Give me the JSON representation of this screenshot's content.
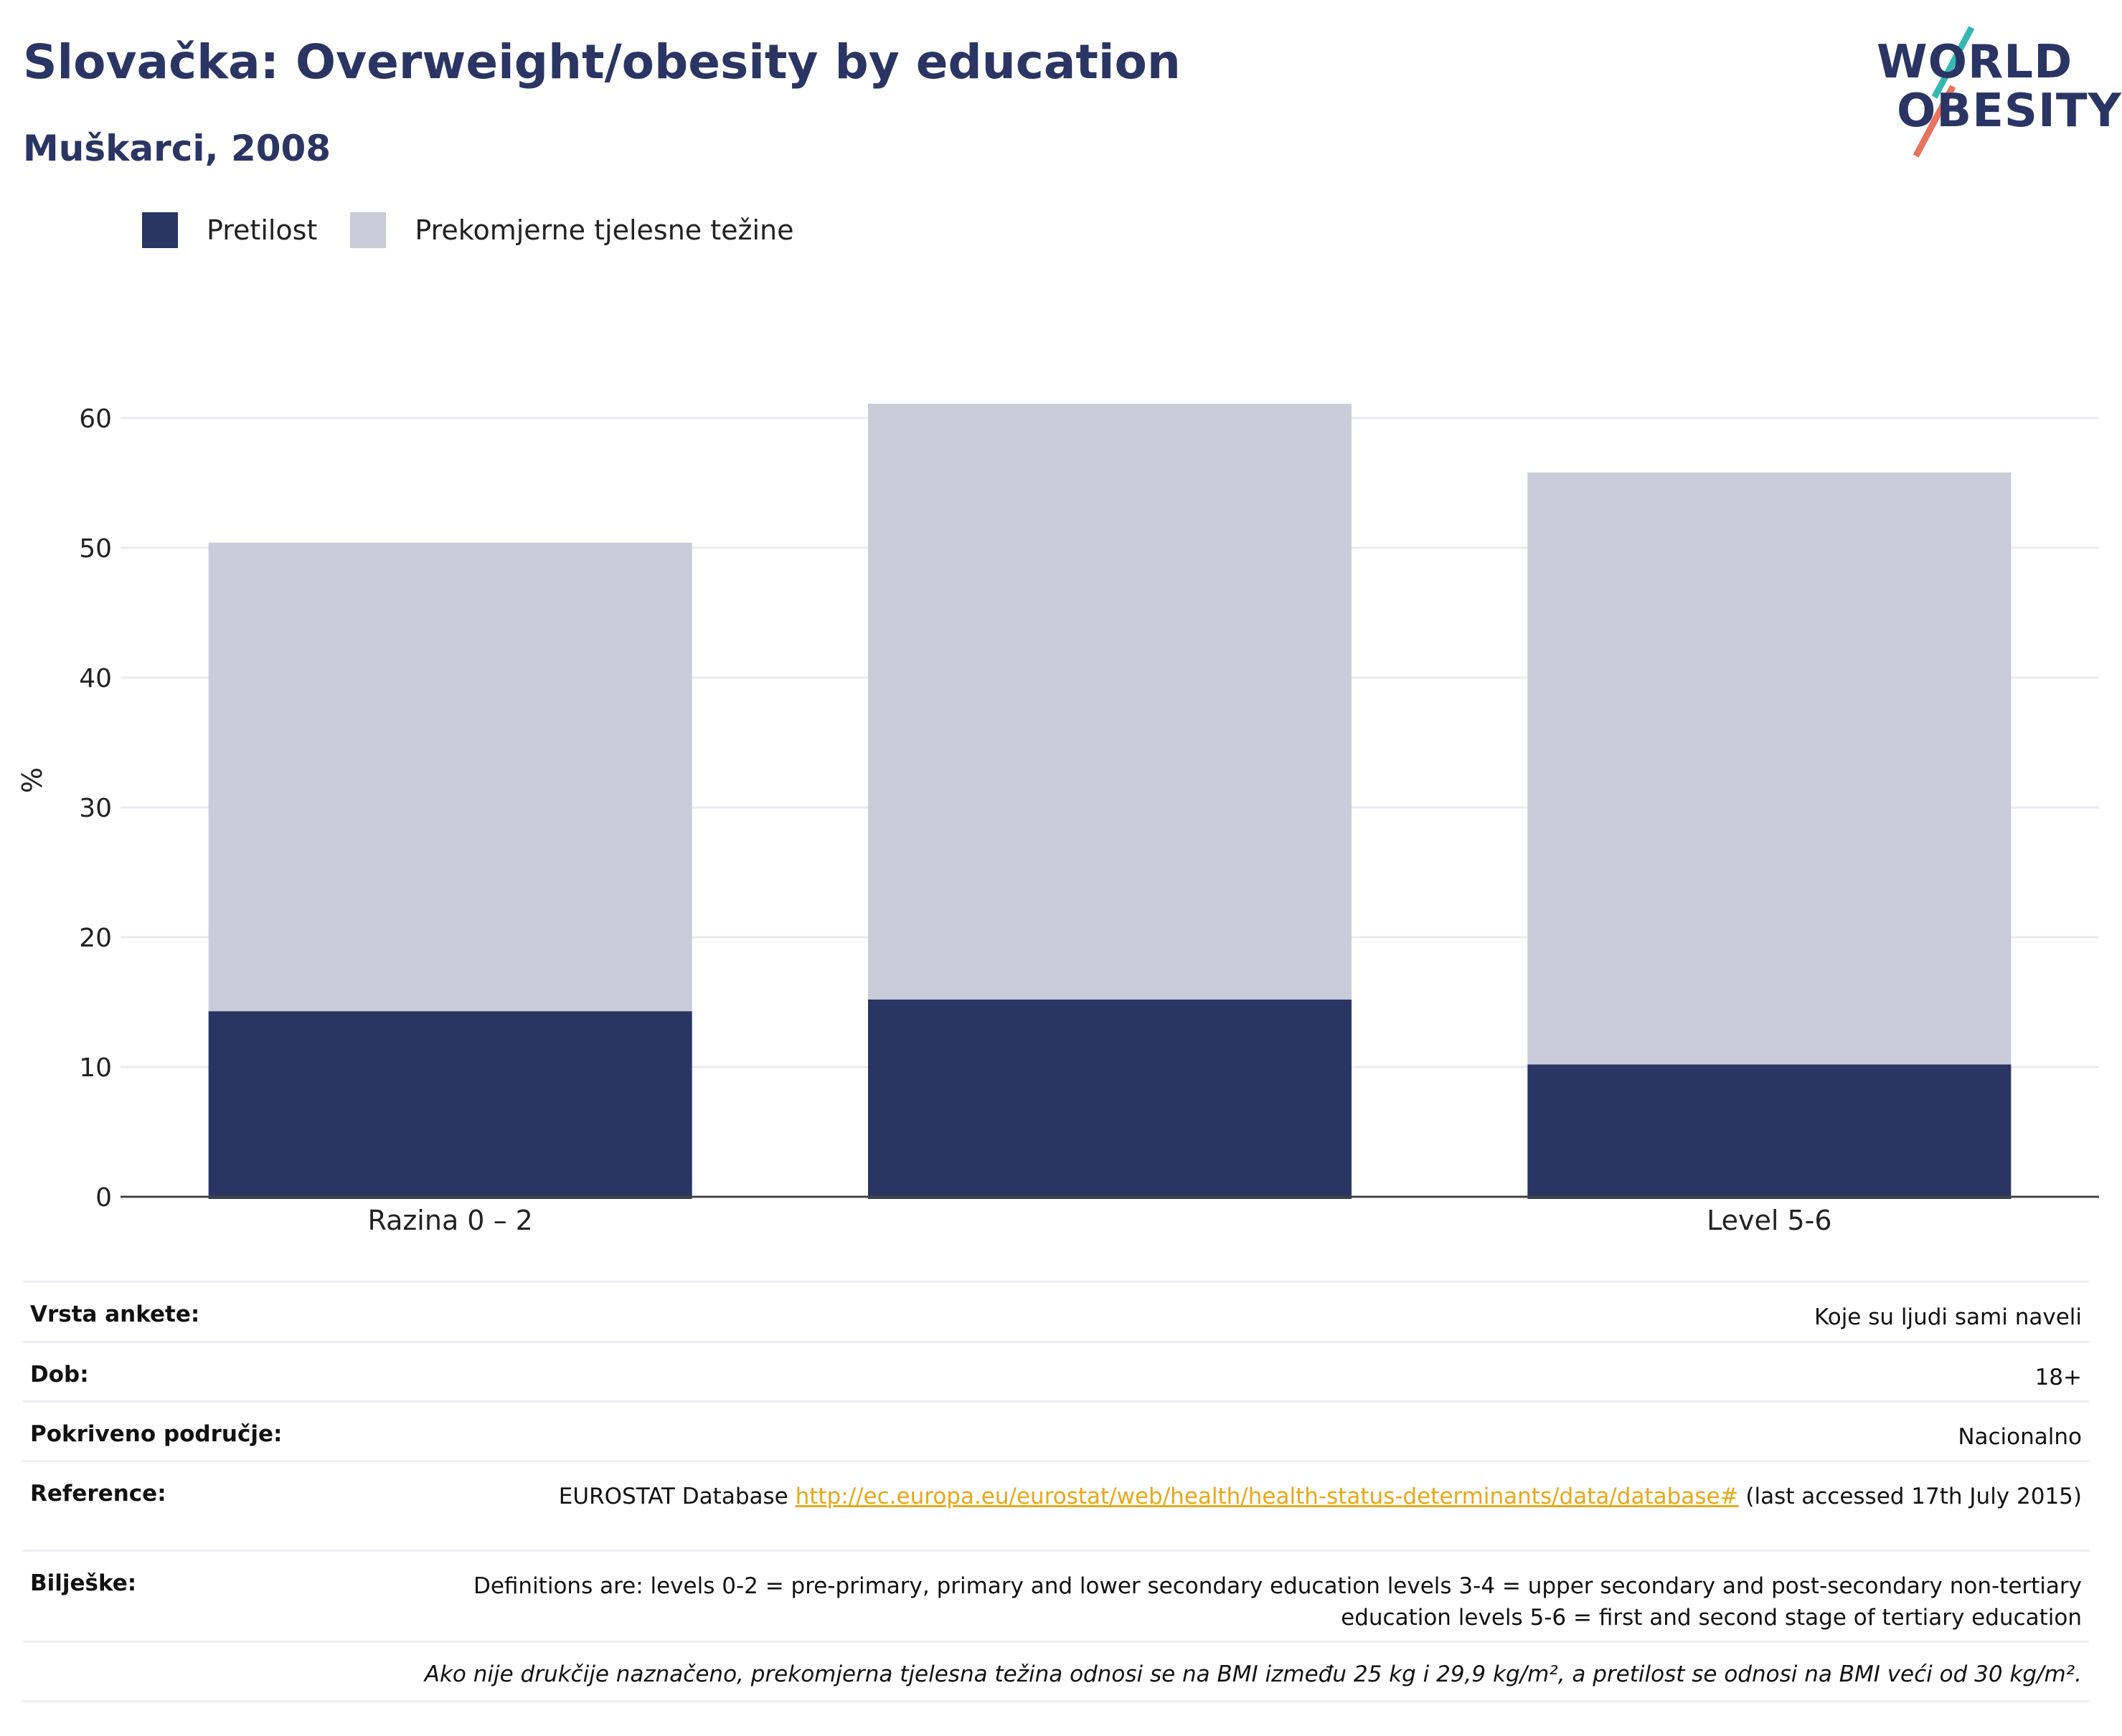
{
  "header": {
    "title": "Slovačka: Overweight/obesity by education",
    "subtitle": "Muškarci, 2008"
  },
  "logo": {
    "line1": "WORLD",
    "line2": "OBESITY",
    "colors": {
      "text": "#2a3563",
      "slash_top": "#35b8b1",
      "slash_bottom": "#e8735e"
    }
  },
  "legend": [
    {
      "label": "Pretilost",
      "color": "#2a3563"
    },
    {
      "label": "Prekomjerne tjelesne težine",
      "color": "#c9ccd8"
    }
  ],
  "chart_data": {
    "type": "bar",
    "stacked": true,
    "categories": [
      "Razina 0 – 2",
      "",
      "Level 5-6"
    ],
    "series": [
      {
        "name": "Pretilost",
        "color": "#2a3563",
        "values": [
          14.3,
          15.2,
          10.2
        ]
      },
      {
        "name": "Prekomjerne tjelesne težine",
        "color": "#c9ccd8",
        "values": [
          36.1,
          45.9,
          45.6
        ]
      }
    ],
    "ylabel": "%",
    "ylim": [
      0,
      65
    ],
    "yticks": [
      0,
      10,
      20,
      30,
      40,
      50,
      60
    ],
    "grid": true,
    "legend_position": "top-left"
  },
  "info": {
    "rows": [
      {
        "key": "Vrsta ankete:",
        "value": "Koje su ljudi sami naveli"
      },
      {
        "key": "Dob:",
        "value": "18+"
      },
      {
        "key": "Pokriveno područje:",
        "value": "Nacionalno"
      },
      {
        "key": "Reference:",
        "prefix": "EUROSTAT Database ",
        "link": "http://ec.europa.eu/eurostat/web/health/health-status-determinants/data/database#",
        "suffix": " (last accessed 17th July 2015)"
      },
      {
        "key": "Bilješke:",
        "value": "Definitions are: levels 0-2 = pre-primary, primary and lower secondary education levels 3-4 = upper secondary and post-secondary non-tertiary education levels 5-6 = first and second stage of tertiary education"
      }
    ],
    "footnote": "Ako nije drukčije naznačeno, prekomjerna tjelesna težina odnosi se na BMI između 25 kg i 29,9 kg/m², a pretilost se odnosi na BMI veći od 30 kg/m²."
  }
}
